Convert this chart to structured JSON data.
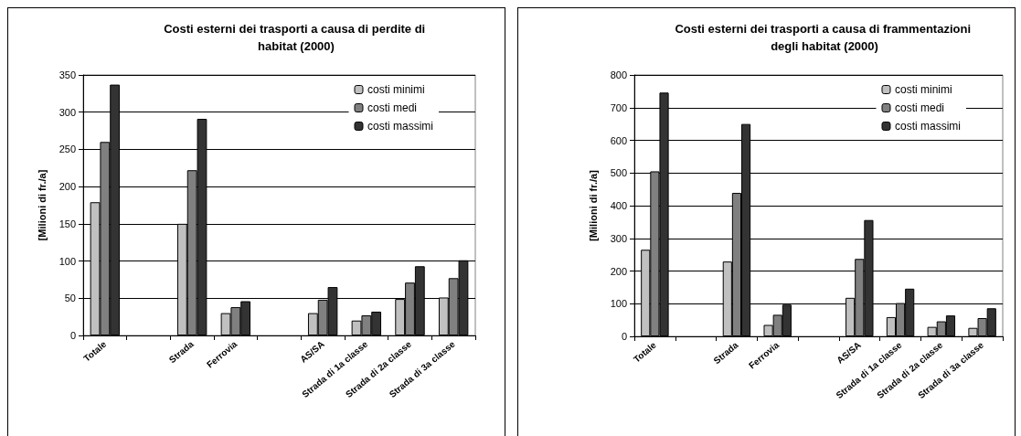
{
  "chart_data": [
    {
      "type": "bar",
      "title": "Costi esterni dei trasporti a causa di perdite di habitat (2000)",
      "ylabel": "[Milioni di fr./a]",
      "categories": [
        "Totale",
        null,
        "Strada",
        "Ferrovia",
        null,
        "AS/SA",
        "Strada di 1a classe",
        "Strada di 2a classe",
        "Strada di 3a classe"
      ],
      "series": [
        {
          "name": "costi minimi",
          "color": "#c0c0c0",
          "values": [
            179,
            null,
            150,
            30,
            null,
            30,
            20,
            49,
            51
          ]
        },
        {
          "name": "costi medi",
          "color": "#808080",
          "values": [
            260,
            null,
            222,
            38,
            null,
            48,
            27,
            71,
            77
          ]
        },
        {
          "name": "costi massimi",
          "color": "#333333",
          "values": [
            337,
            null,
            291,
            46,
            null,
            65,
            32,
            93,
            101
          ]
        }
      ],
      "ylim": [
        0,
        350
      ],
      "yticks": [
        0,
        50,
        100,
        150,
        200,
        250,
        300,
        350
      ],
      "grid": "y",
      "legend": "top right"
    },
    {
      "type": "bar",
      "title": "Costi esterni dei trasporti a causa di frammentazioni degli habitat (2000)",
      "ylabel": "[Milioni di fr./a]",
      "categories": [
        "Totale",
        null,
        "Strada",
        "Ferrovia",
        null,
        "AS/SA",
        "Strada di 1a classe",
        "Strada di 2a classe",
        "Strada di 3a classe"
      ],
      "series": [
        {
          "name": "costi minimi",
          "color": "#c0c0c0",
          "values": [
            265,
            null,
            229,
            35,
            null,
            118,
            59,
            29,
            26
          ]
        },
        {
          "name": "costi medi",
          "color": "#808080",
          "values": [
            505,
            null,
            439,
            66,
            null,
            237,
            102,
            46,
            56
          ]
        },
        {
          "name": "costi massimi",
          "color": "#333333",
          "values": [
            746,
            null,
            650,
            97,
            null,
            356,
            146,
            64,
            86
          ]
        }
      ],
      "ylim": [
        0,
        800
      ],
      "yticks": [
        0,
        100,
        200,
        300,
        400,
        500,
        600,
        700,
        800
      ],
      "grid": "y",
      "legend": "top right"
    }
  ]
}
